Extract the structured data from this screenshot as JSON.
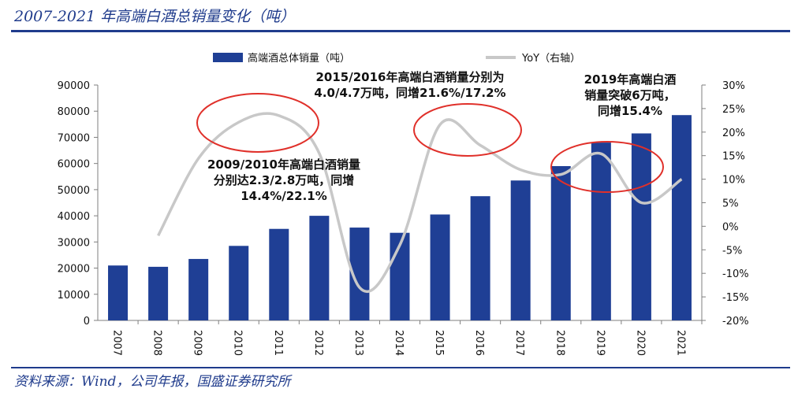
{
  "header": {
    "title": "2007-2021 年高端白酒总销量变化（吨）"
  },
  "footer": {
    "source": "资料来源：Wind，公司年报，国盛证券研究所"
  },
  "colors": {
    "bar": "#1f3f95",
    "line": "#c8c8c8",
    "circle": "#e0302a",
    "accent": "#1f3b8c"
  },
  "chart_data": {
    "type": "bar",
    "categories": [
      "2007",
      "2008",
      "2009",
      "2010",
      "2011",
      "2012",
      "2013",
      "2014",
      "2015",
      "2016",
      "2017",
      "2018",
      "2019",
      "2020",
      "2021"
    ],
    "series": [
      {
        "name": "高端酒总体销量（吨）",
        "type": "bar",
        "axis": "left",
        "values": [
          21000,
          20500,
          23500,
          28500,
          35000,
          40000,
          35500,
          33500,
          40500,
          47500,
          53500,
          59000,
          68000,
          71500,
          78500
        ]
      },
      {
        "name": "YoY（右轴）",
        "type": "line",
        "axis": "right",
        "values": [
          null,
          -2,
          14.4,
          22.1,
          23.5,
          15.5,
          -13,
          -4,
          21.6,
          17.2,
          12,
          11,
          15.4,
          5,
          10
        ]
      }
    ],
    "y_left": {
      "lim": [
        0,
        90000
      ],
      "ticks": [
        "0",
        "10000",
        "20000",
        "30000",
        "40000",
        "50000",
        "60000",
        "70000",
        "80000",
        "90000"
      ]
    },
    "y_right": {
      "lim": [
        -20,
        30
      ],
      "ticks": [
        "-20%",
        "-15%",
        "-10%",
        "-5%",
        "0%",
        "5%",
        "10%",
        "15%",
        "20%",
        "25%",
        "30%"
      ]
    },
    "legend_position": "top",
    "grid": false,
    "annotations": [
      {
        "lines": [
          "2009/2010年高端白酒销量",
          "分别达2.3/2.8万吨，同增",
          "14.4%/22.1%"
        ]
      },
      {
        "lines": [
          "2015/2016年高端白酒销量分别为",
          "4.0/4.7万吨，同增21.6%/17.2%"
        ]
      },
      {
        "lines": [
          "2019年高端白酒",
          "销量突破6万吨，",
          "同增15.4%"
        ]
      }
    ]
  }
}
